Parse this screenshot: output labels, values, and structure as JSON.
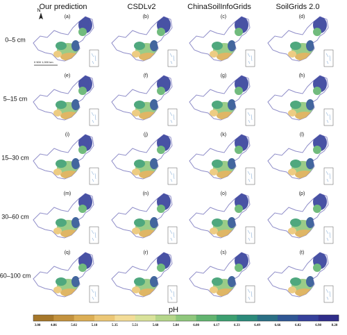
{
  "columns": [
    "Our prediction",
    "CSDLv2",
    "ChinaSoilInfoGrids",
    "SoilGrids 2.0"
  ],
  "rows": [
    "0–5 cm",
    "5–15 cm",
    "15–30 cm",
    "30–60 cm",
    "60–100 cm"
  ],
  "panels": [
    "(a)",
    "(b)",
    "(c)",
    "(d)",
    "(e)",
    "(f)",
    "(g)",
    "(h)",
    "(i)",
    "(j)",
    "(k)",
    "(l)",
    "(m)",
    "(n)",
    "(o)",
    "(p)",
    "(q)",
    "(r)",
    "(s)",
    "(t)"
  ],
  "north": "N",
  "scale_bar": "0   500  1,000 km",
  "colorbar": {
    "title": "pH",
    "labels": [
      "3.00",
      "4.86",
      "5.02",
      "5.18",
      "5.35",
      "5.51",
      "5.68",
      "5.84",
      "6.00",
      "6.17",
      "6.33",
      "6.49",
      "6.66",
      "6.82",
      "6.98",
      "8.20"
    ],
    "colors": [
      "#a6772a",
      "#c3923e",
      "#dcae55",
      "#ecc776",
      "#f3dc97",
      "#d9e29a",
      "#b5d68a",
      "#8fc77c",
      "#62b46f",
      "#3c9f70",
      "#2b8a7a",
      "#2a6f85",
      "#2f5694",
      "#35409b",
      "#2f2d8a"
    ]
  }
}
